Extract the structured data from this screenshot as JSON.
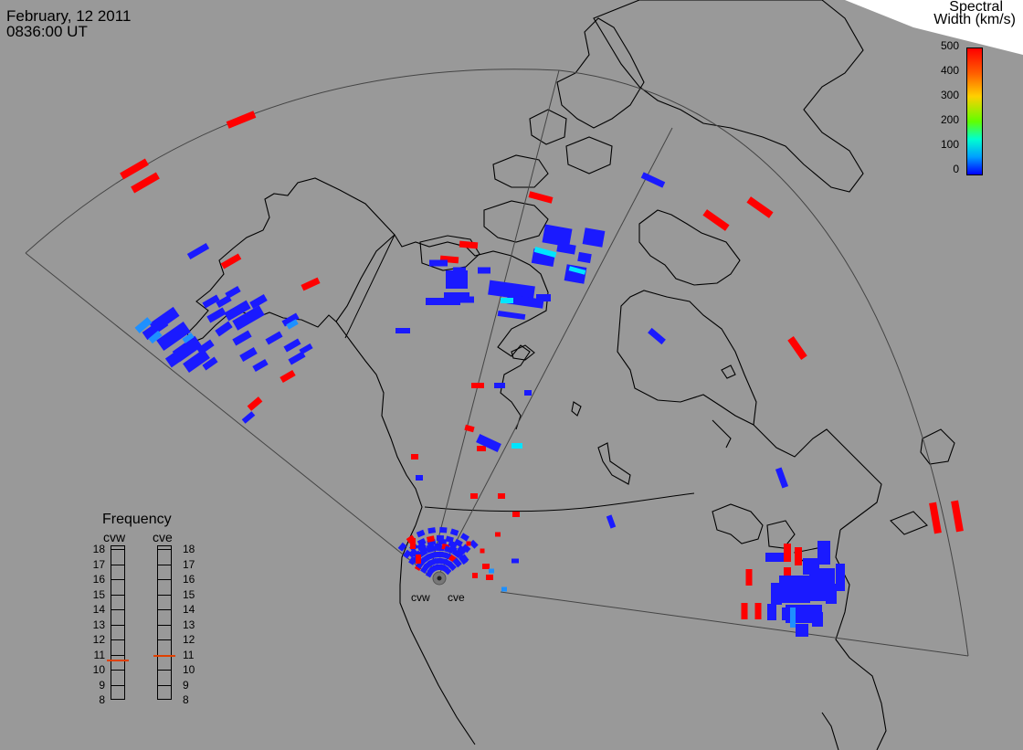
{
  "header": {
    "date": "February, 12 2011",
    "time": "0836:00 UT"
  },
  "colorbar": {
    "title_line1": "Spectral",
    "title_line2": "Width (km/s)",
    "ticks": [
      "500",
      "400",
      "300",
      "200",
      "100",
      "0"
    ],
    "colors": [
      "#ff0000",
      "#ff8000",
      "#ffff00",
      "#00ff00",
      "#00ffff",
      "#0000ff"
    ]
  },
  "frequency_panel": {
    "title": "Frequency",
    "radars": [
      "cvw",
      "cve"
    ],
    "scale": [
      "18",
      "17",
      "16",
      "15",
      "14",
      "13",
      "12",
      "11",
      "10",
      "9",
      "8"
    ],
    "cvw_mhz": 10.6,
    "cve_mhz": 10.9
  },
  "radar_sites": [
    "cvw",
    "cve"
  ],
  "colors": {
    "background_map": "#999999",
    "echo_low": "#1a1aff",
    "echo_mid": "#1e90ff",
    "echo_cyan": "#00e5ff",
    "echo_high": "#ff0000",
    "frequency_marker": "#e04000"
  }
}
